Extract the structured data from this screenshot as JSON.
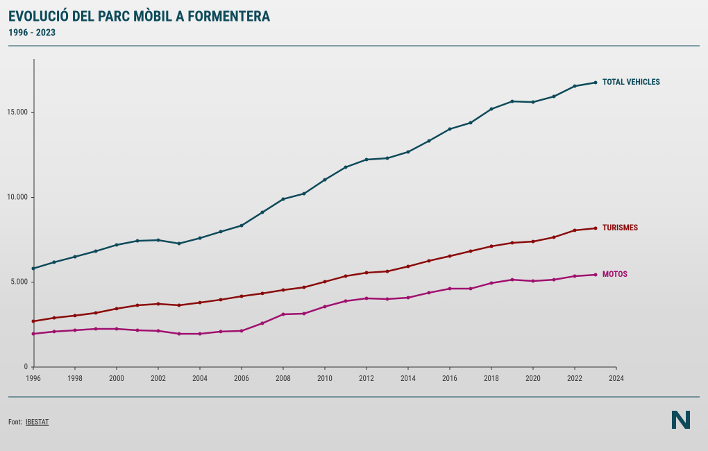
{
  "chart_data": {
    "type": "line",
    "title": "EVOLUCIÓ DEL PARC MÒBIL A FORMENTERA",
    "subtitle": "1996 - 2023",
    "x": [
      1996,
      1997,
      1998,
      1999,
      2000,
      2001,
      2002,
      2003,
      2004,
      2005,
      2006,
      2007,
      2008,
      2009,
      2010,
      2011,
      2012,
      2013,
      2014,
      2015,
      2016,
      2017,
      2018,
      2019,
      2020,
      2021,
      2022,
      2023
    ],
    "series": [
      {
        "name": "TOTAL VEHICLES",
        "color": "#0d4a5a",
        "values": [
          5810,
          6180,
          6500,
          6830,
          7200,
          7440,
          7480,
          7280,
          7600,
          7980,
          8340,
          9120,
          9900,
          10220,
          11040,
          11780,
          12230,
          12310,
          12680,
          13330,
          14030,
          14400,
          15210,
          15660,
          15620,
          15950,
          16560,
          16770
        ]
      },
      {
        "name": "TURISMES",
        "color": "#8b0a0a",
        "values": [
          2700,
          2900,
          3030,
          3190,
          3440,
          3640,
          3720,
          3640,
          3800,
          3970,
          4170,
          4340,
          4540,
          4700,
          5030,
          5360,
          5560,
          5640,
          5930,
          6260,
          6540,
          6830,
          7120,
          7320,
          7400,
          7650,
          8060,
          8180
        ]
      },
      {
        "name": "MOTOS",
        "color": "#a0106e",
        "values": [
          1960,
          2090,
          2170,
          2250,
          2250,
          2170,
          2130,
          1960,
          1960,
          2090,
          2130,
          2580,
          3110,
          3150,
          3560,
          3890,
          4050,
          4010,
          4090,
          4380,
          4620,
          4620,
          4950,
          5150,
          5070,
          5150,
          5360,
          5440
        ]
      }
    ],
    "xlim": [
      1996,
      2024
    ],
    "xticks": [
      1996,
      1998,
      2000,
      2002,
      2004,
      2006,
      2008,
      2010,
      2012,
      2014,
      2016,
      2018,
      2020,
      2022,
      2024
    ],
    "ylim": [
      0,
      18160
    ],
    "yticks": [
      {
        "value": 0,
        "label": "0"
      },
      {
        "value": 5000,
        "label": "5.000"
      },
      {
        "value": 10000,
        "label": "10.000"
      },
      {
        "value": 15000,
        "label": "15.000"
      }
    ],
    "source_prefix": "Font:",
    "source": "IBESTAT"
  }
}
